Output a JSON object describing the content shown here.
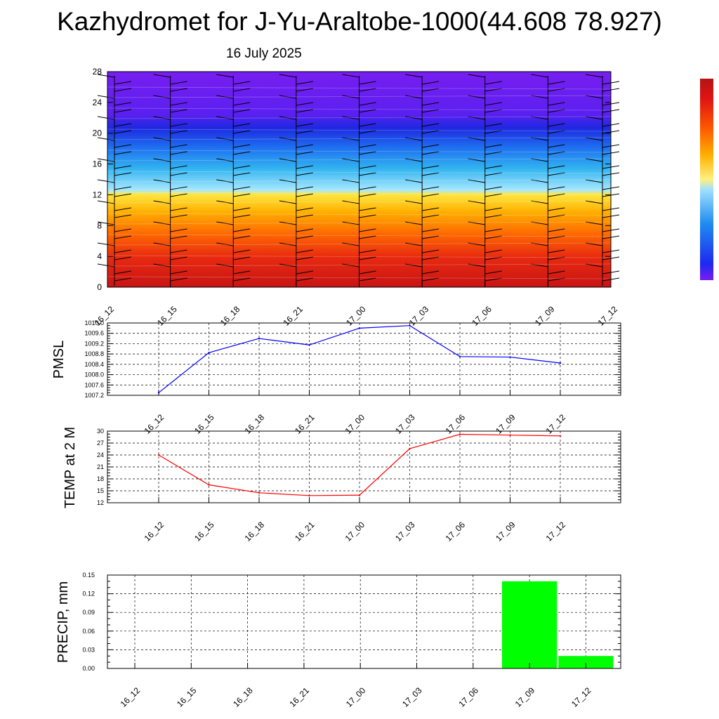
{
  "title": "Kazhydromet for J-Yu-Araltobe-1000(44.608 78.927)",
  "subtitle": "16 July 2025",
  "time_labels": [
    "16_12",
    "16_15",
    "16_18",
    "16_21",
    "17_00",
    "17_03",
    "17_06",
    "17_09",
    "17_12"
  ],
  "chart_data": [
    {
      "type": "heatmap",
      "ylim": [
        0,
        28
      ],
      "yticks": [
        "0",
        "4",
        "8",
        "12",
        "16",
        "20",
        "24",
        "28"
      ],
      "x": [
        "16_12",
        "16_15",
        "16_18",
        "16_21",
        "17_00",
        "17_03",
        "17_06",
        "17_09",
        "17_12"
      ],
      "colorbar": true,
      "colors": {
        "low": "#c81414",
        "orange": "#ff8c00",
        "yellow": "#ffe640",
        "cyan": "#32b4f0",
        "blue": "#1e28f0",
        "top": "#781ef0"
      },
      "annotation": "wind barbs"
    },
    {
      "type": "line",
      "ylabel": "PMSL",
      "ylim": [
        1007.2,
        1010.0
      ],
      "yticks": [
        "1007.2",
        "1007.6",
        "1008.0",
        "1008.4",
        "1008.8",
        "1009.2",
        "1009.6",
        "1010.0"
      ],
      "grid": true,
      "categories": [
        "16_12",
        "16_15",
        "16_18",
        "16_21",
        "17_00",
        "17_03",
        "17_06",
        "17_09",
        "17_12"
      ],
      "values": [
        1007.3,
        1008.85,
        1009.4,
        1009.15,
        1009.8,
        1009.9,
        1008.7,
        1008.68,
        1008.45
      ],
      "color": "#0000ff"
    },
    {
      "type": "line",
      "ylabel": "TEMP at 2 M",
      "ylim": [
        12,
        30
      ],
      "yticks": [
        "12",
        "15",
        "18",
        "21",
        "24",
        "27",
        "30"
      ],
      "grid": true,
      "categories": [
        "16_12",
        "16_15",
        "16_18",
        "16_21",
        "17_00",
        "17_03",
        "17_06",
        "17_09",
        "17_12"
      ],
      "values": [
        24.0,
        16.5,
        14.5,
        13.8,
        13.9,
        25.6,
        29.2,
        29.0,
        28.8
      ],
      "color": "#ff0000"
    },
    {
      "type": "bar",
      "ylabel": "PRECIP, mm",
      "ylim": [
        0,
        0.15
      ],
      "yticks": [
        "0.00",
        "0.03",
        "0.06",
        "0.09",
        "0.12",
        "0.15"
      ],
      "grid": true,
      "categories": [
        "16_12",
        "16_15",
        "16_18",
        "16_21",
        "17_00",
        "17_03",
        "17_06",
        "17_09",
        "17_12"
      ],
      "values": [
        0,
        0,
        0,
        0,
        0,
        0,
        0,
        0.14,
        0.02
      ],
      "color": "#00ff00"
    }
  ]
}
